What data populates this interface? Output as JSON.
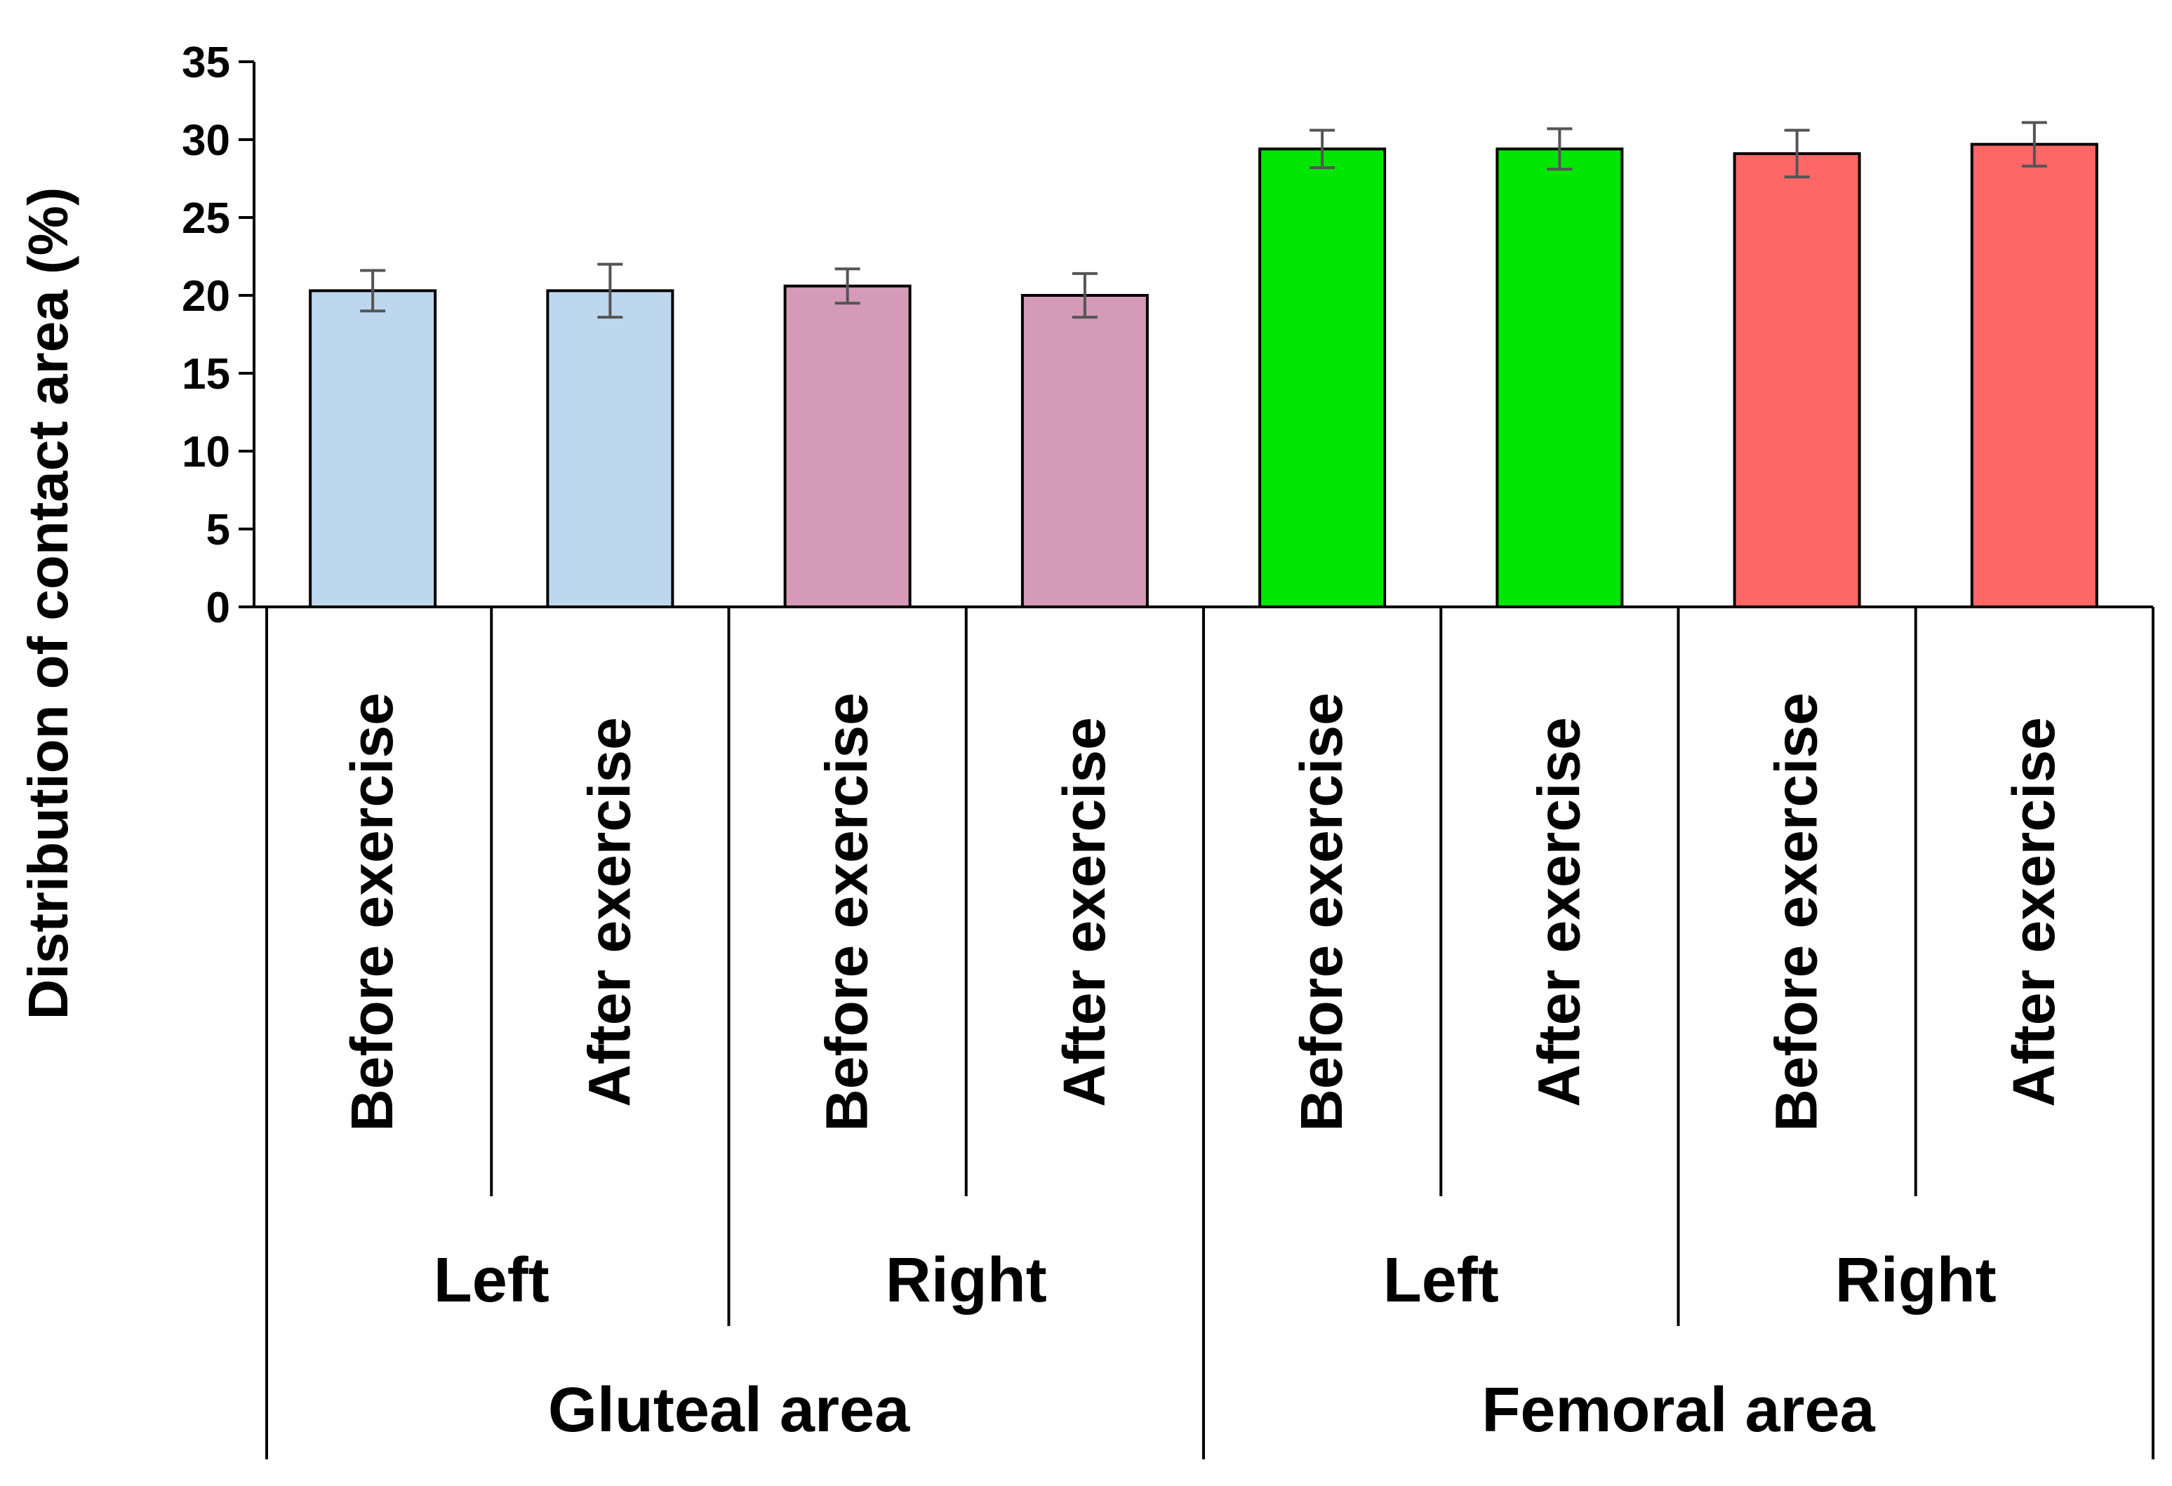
{
  "chart_data": {
    "type": "bar",
    "title": "",
    "ylabel": "Distribution of contact area (%)",
    "xlabel": "",
    "ylim": [
      0,
      35
    ],
    "yticks": [
      0,
      5,
      10,
      15,
      20,
      25,
      30,
      35
    ],
    "grid": false,
    "categories": [
      "Before exercise",
      "After exercise",
      "Before exercise",
      "After exercise",
      "Before exercise",
      "After exercise",
      "Before exercise",
      "After exercise"
    ],
    "values": [
      20.3,
      20.3,
      20.6,
      20.0,
      29.4,
      29.4,
      29.1,
      29.7
    ],
    "errors": [
      1.3,
      1.7,
      1.1,
      1.4,
      1.2,
      1.3,
      1.5,
      1.4
    ],
    "colors": [
      "#bdd7ee",
      "#bdd7ee",
      "#d49ab8",
      "#d49ab8",
      "#00e600",
      "#00e600",
      "#ff6666",
      "#ff6666"
    ],
    "sides": [
      "Left",
      "Right",
      "Left",
      "Right"
    ],
    "areas": [
      "Gluteal area",
      "Femoral area"
    ]
  }
}
